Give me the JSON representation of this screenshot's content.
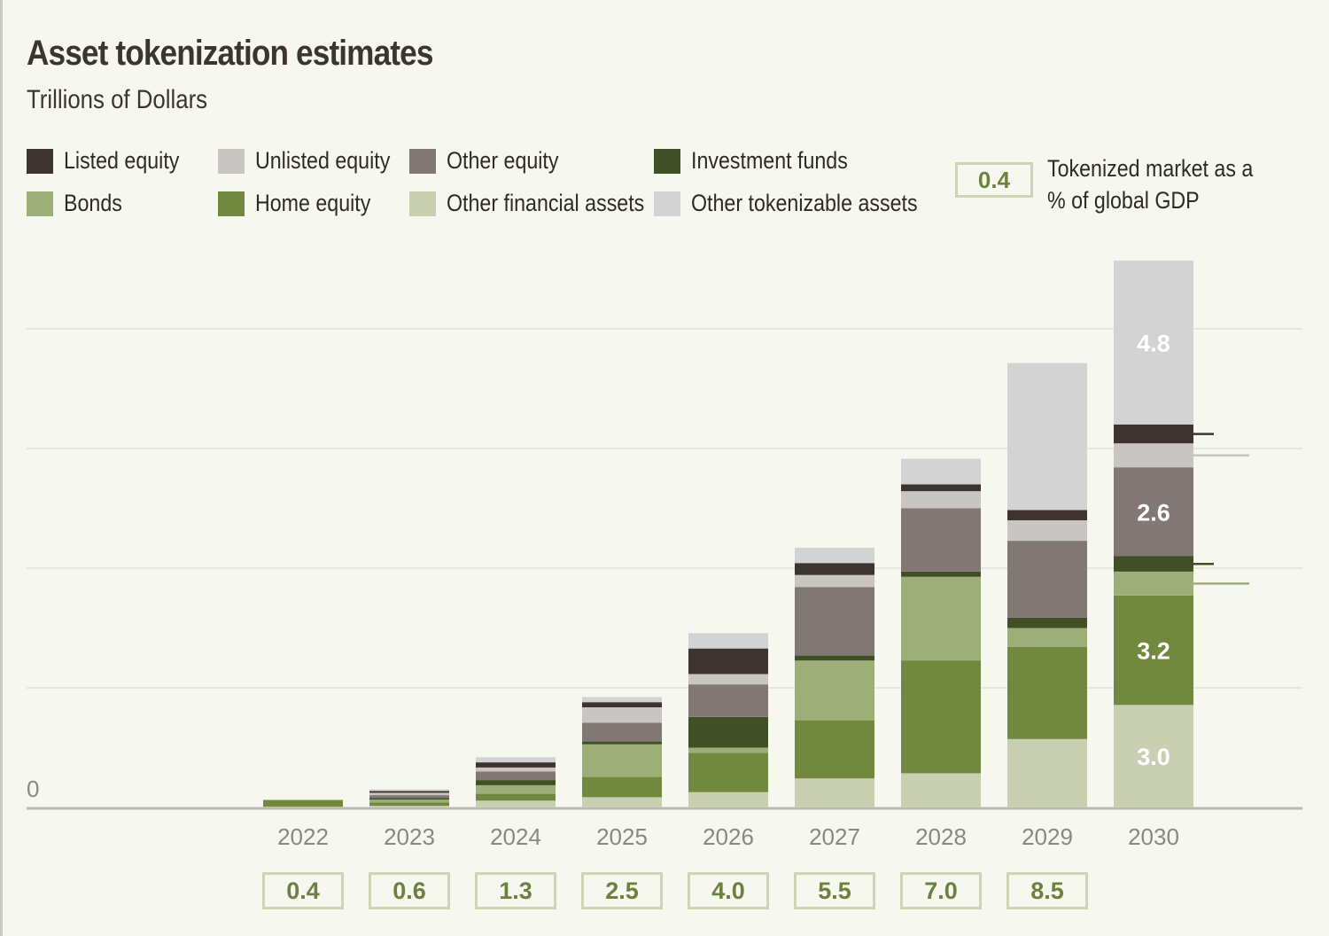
{
  "title": "Asset tokenization estimates",
  "subtitle": "Trillions of Dollars",
  "legend": [
    {
      "label": "Listed equity",
      "color": "#3d3431"
    },
    {
      "label": "Unlisted equity",
      "color": "#c9c5c2"
    },
    {
      "label": "Other equity",
      "color": "#817774"
    },
    {
      "label": "Investment funds",
      "color": "#414f26"
    },
    {
      "label": "Bonds",
      "color": "#9eae79"
    },
    {
      "label": "Home equity",
      "color": "#71883f"
    },
    {
      "label": "Other financial assets",
      "color": "#c9d0b1"
    },
    {
      "label": "Other tokenizable assets",
      "color": "#d3d3d3"
    }
  ],
  "gdp_key": {
    "value": "0.4",
    "label": "Tokenized market as a % of global GDP"
  },
  "chart_data": {
    "type": "bar",
    "stacked": true,
    "categories": [
      "2022",
      "2023",
      "2024",
      "2025",
      "2026",
      "2027",
      "2028",
      "2029",
      "2030"
    ],
    "y_zero_label": "0",
    "ylim": [
      0,
      17.5
    ],
    "grid": true,
    "legend_position": "top",
    "series": [
      {
        "name": "Other financial assets",
        "color": "#c9d0b1",
        "values": [
          0.02,
          0.05,
          0.2,
          0.3,
          0.45,
          0.85,
          1.0,
          2.0,
          3.0
        ]
      },
      {
        "name": "Home equity",
        "color": "#71883f",
        "values": [
          0.2,
          0.1,
          0.2,
          0.6,
          1.15,
          1.7,
          3.3,
          2.7,
          3.2
        ]
      },
      {
        "name": "Bonds",
        "color": "#9eae79",
        "values": [
          0.0,
          0.08,
          0.25,
          0.95,
          0.15,
          1.75,
          2.45,
          0.55,
          0.7
        ]
      },
      {
        "name": "Investment funds",
        "color": "#414f26",
        "values": [
          0.0,
          0.05,
          0.15,
          0.08,
          0.9,
          0.15,
          0.15,
          0.3,
          0.45
        ]
      },
      {
        "name": "Other equity",
        "color": "#817774",
        "values": [
          0.0,
          0.08,
          0.25,
          0.55,
          0.95,
          2.0,
          1.85,
          2.25,
          2.6
        ]
      },
      {
        "name": "Unlisted equity",
        "color": "#c9c5c2",
        "values": [
          0.0,
          0.07,
          0.12,
          0.45,
          0.3,
          0.35,
          0.5,
          0.6,
          0.7
        ]
      },
      {
        "name": "Listed equity",
        "color": "#3d3431",
        "values": [
          0.0,
          0.05,
          0.15,
          0.15,
          0.75,
          0.35,
          0.2,
          0.3,
          0.55
        ]
      },
      {
        "name": "Other tokenizable assets",
        "color": "#d3d3d3",
        "values": [
          0.0,
          0.05,
          0.15,
          0.15,
          0.45,
          0.45,
          0.75,
          4.3,
          4.8
        ]
      }
    ],
    "data_labels": [
      {
        "category": "2030",
        "series": "Other financial assets",
        "text": "3.0"
      },
      {
        "category": "2030",
        "series": "Home equity",
        "text": "3.2"
      },
      {
        "category": "2030",
        "series": "Other equity",
        "text": "2.6"
      },
      {
        "category": "2030",
        "series": "Other tokenizable assets",
        "text": "4.8"
      }
    ],
    "gdp_percent": [
      "0.4",
      "0.6",
      "1.3",
      "2.5",
      "4.0",
      "5.5",
      "7.0",
      "8.5"
    ]
  }
}
